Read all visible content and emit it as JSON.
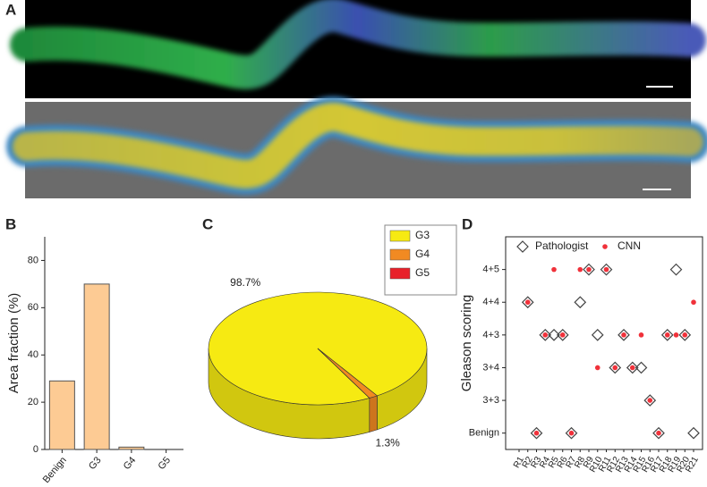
{
  "panel_a_label": "A",
  "chart_data": [
    {
      "type": "bar",
      "panel_label": "B",
      "ylabel": "Area fraction (%)",
      "categories": [
        "Benign",
        "G3",
        "G4",
        "G5"
      ],
      "values": [
        29,
        70,
        1,
        0
      ],
      "color": "#fdcb94",
      "ylim": [
        0,
        90
      ],
      "yticks": [
        0,
        20,
        40,
        60,
        80
      ]
    },
    {
      "type": "pie3d",
      "panel_label": "C",
      "categories": [
        "G3",
        "G4",
        "G5"
      ],
      "values": [
        98.7,
        1.3,
        0
      ],
      "value_labels": [
        "98.7%",
        "1.3%",
        null
      ],
      "colors": [
        "#f6ea12",
        "#f18a22",
        "#e8202a"
      ],
      "legend": "top-right"
    },
    {
      "type": "scatter",
      "panel_label": "D",
      "ylabel": "Gleason scoring",
      "categories": [
        "R1",
        "R2",
        "R3",
        "R4",
        "R5",
        "R6",
        "R7",
        "R8",
        "R9",
        "R10",
        "R11",
        "R12",
        "R13",
        "R14",
        "R15",
        "R16",
        "R17",
        "R18",
        "R19",
        "R20",
        "R21"
      ],
      "ylim": [
        -0.5,
        6
      ],
      "yticks": [
        {
          "value": 0,
          "label": "Benign"
        },
        {
          "value": 1,
          "label": "3+3"
        },
        {
          "value": 2,
          "label": "3+4"
        },
        {
          "value": 3,
          "label": "4+3"
        },
        {
          "value": 4,
          "label": "4+4"
        },
        {
          "value": 5,
          "label": "4+5"
        }
      ],
      "legend": "top",
      "series": [
        {
          "name": "Pathologist",
          "color": "#444444",
          "marker": "diamond",
          "values": [
            null,
            4,
            0,
            3,
            3,
            3,
            0,
            4,
            5,
            3,
            5,
            2,
            3,
            2,
            2,
            1,
            0,
            3,
            5,
            3,
            0
          ]
        },
        {
          "name": "CNN",
          "color": "#f0313a",
          "marker": "dot",
          "values": [
            null,
            4,
            0,
            3,
            5,
            3,
            0,
            5,
            5,
            2,
            5,
            2,
            3,
            2,
            3,
            1,
            0,
            3,
            3,
            3,
            4
          ]
        }
      ]
    }
  ]
}
